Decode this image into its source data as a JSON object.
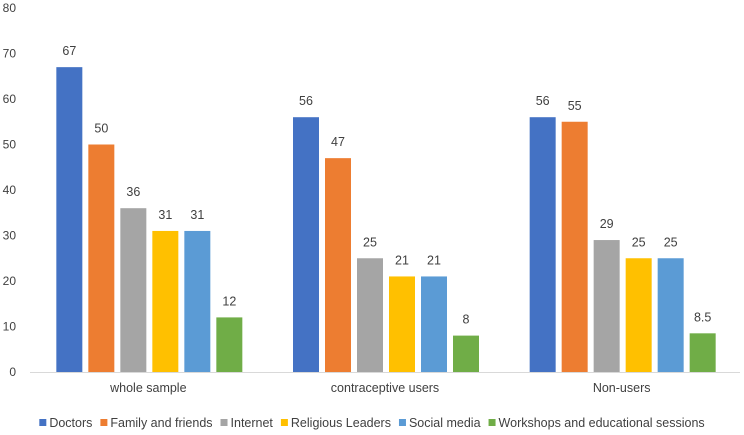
{
  "chart_data": {
    "type": "bar",
    "title": "",
    "xlabel": "",
    "ylabel": "",
    "categories": [
      "whole sample",
      "contraceptive users",
      "Non-users"
    ],
    "series": [
      {
        "name": "Doctors",
        "color": "#4472C4",
        "values": [
          67,
          56,
          56
        ],
        "labels": [
          "67",
          "56",
          "56"
        ]
      },
      {
        "name": "Family and friends",
        "color": "#ED7D31",
        "values": [
          50,
          47,
          55
        ],
        "labels": [
          "50",
          "47",
          "55"
        ]
      },
      {
        "name": "Internet",
        "color": "#A5A5A5",
        "values": [
          36,
          25,
          29
        ],
        "labels": [
          "36",
          "25",
          "29"
        ]
      },
      {
        "name": "Religious Leaders",
        "color": "#FFC000",
        "values": [
          31,
          21,
          25
        ],
        "labels": [
          "31",
          "21",
          "25"
        ]
      },
      {
        "name": "Social media",
        "color": "#5B9BD5",
        "values": [
          31,
          21,
          25
        ],
        "labels": [
          "31",
          "21",
          "25"
        ]
      },
      {
        "name": "Workshops and educational sessions",
        "color": "#70AD47",
        "values": [
          12,
          8,
          8.5
        ],
        "labels": [
          "12",
          "8",
          "8.5"
        ]
      }
    ],
    "ylim": [
      0,
      80
    ],
    "yticks": [
      0,
      10,
      20,
      30,
      40,
      50,
      60,
      70,
      80
    ],
    "grid": false,
    "legend": "bottom"
  }
}
